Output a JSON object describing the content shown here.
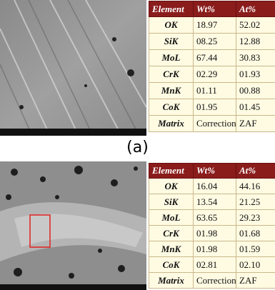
{
  "panels": [
    {
      "label": "(a)",
      "table": {
        "header": [
          "Element",
          "Wt%",
          "At%"
        ],
        "rows": [
          [
            "OK",
            "18.97",
            "52.02"
          ],
          [
            "SiK",
            "08.25",
            "12.88"
          ],
          [
            "MoL",
            "67.44",
            "30.83"
          ],
          [
            "CrK",
            "02.29",
            "01.93"
          ],
          [
            "MnK",
            "01.11",
            "00.88"
          ],
          [
            "CoK",
            "01.95",
            "01.45"
          ],
          [
            "Matrix",
            "Correction",
            "ZAF"
          ]
        ]
      }
    },
    {
      "table": {
        "header": [
          "Element",
          "Wt%",
          "At%"
        ],
        "rows": [
          [
            "OK",
            "16.04",
            "44.16"
          ],
          [
            "SiK",
            "13.54",
            "21.25"
          ],
          [
            "MoL",
            "63.65",
            "29.23"
          ],
          [
            "CrK",
            "01.98",
            "01.68"
          ],
          [
            "MnK",
            "01.98",
            "01.59"
          ],
          [
            "CoK",
            "02.81",
            "02.10"
          ],
          [
            "Matrix",
            "Correction",
            "ZAF"
          ]
        ]
      }
    }
  ]
}
